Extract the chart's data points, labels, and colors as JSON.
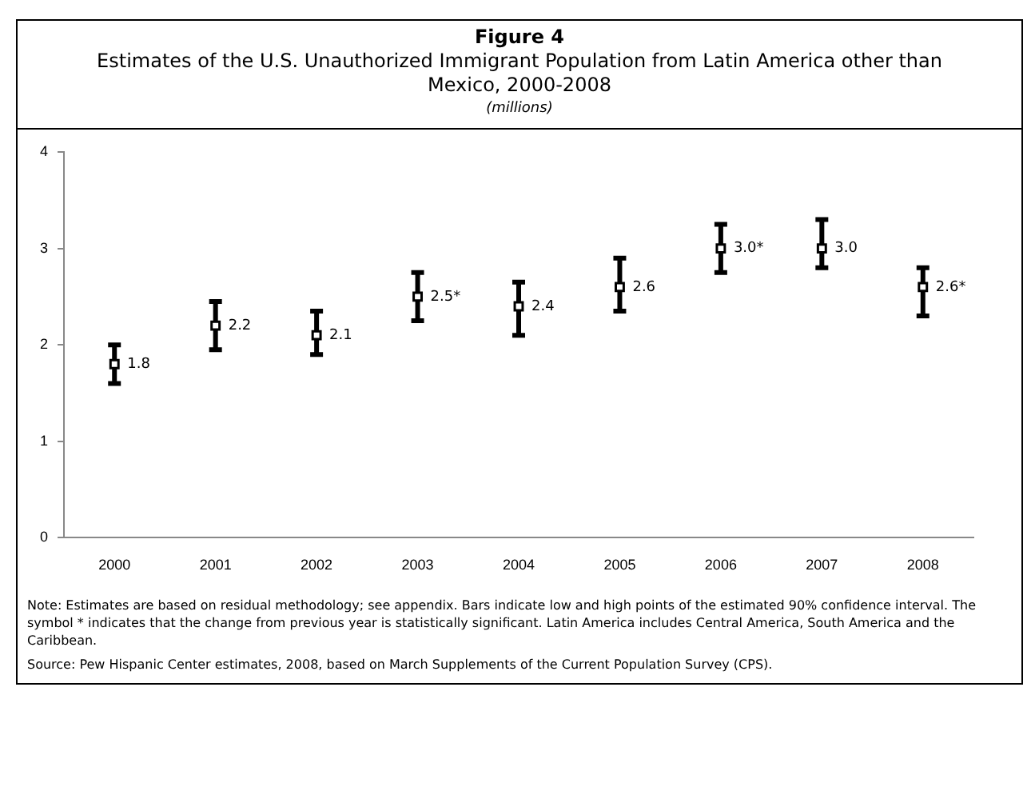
{
  "chart_data": {
    "type": "scatter",
    "title": "Figure 4",
    "subtitle": "Estimates of the U.S. Unauthorized Immigrant Population from Latin America other than Mexico, 2000-2008",
    "ylabel": "(millions)",
    "categories": [
      "2000",
      "2001",
      "2002",
      "2003",
      "2004",
      "2005",
      "2006",
      "2007",
      "2008"
    ],
    "series": [
      {
        "color": "#000000",
        "values": [
          1.8,
          2.2,
          2.1,
          2.5,
          2.4,
          2.6,
          3.0,
          3.0,
          2.6
        ],
        "value_labels": [
          "1.8",
          "2.2",
          "2.1",
          "2.5*",
          "2.4",
          "2.6",
          "3.0*",
          "3.0",
          "2.6*"
        ],
        "errors": [
          [
            1.6,
            2.0
          ],
          [
            1.95,
            2.45
          ],
          [
            1.9,
            2.35
          ],
          [
            2.25,
            2.75
          ],
          [
            2.1,
            2.65
          ],
          [
            2.35,
            2.9
          ],
          [
            2.75,
            3.25
          ],
          [
            2.8,
            3.3
          ],
          [
            2.3,
            2.8
          ]
        ]
      }
    ],
    "ylim": [
      0,
      4
    ],
    "yticks": [
      0,
      1,
      2,
      3,
      4
    ],
    "grid": false,
    "legend": false,
    "marker": "square",
    "annotations": [
      "Note: Estimates are based on residual methodology; see appendix. Bars indicate low and high points of the estimated 90% confidence interval. The symbol * indicates that the change from previous year is statistically significant. Latin America includes Central America, South America and the Caribbean.",
      "Source: Pew Hispanic Center estimates, 2008, based on March Supplements of the Current Population Survey (CPS)."
    ]
  }
}
